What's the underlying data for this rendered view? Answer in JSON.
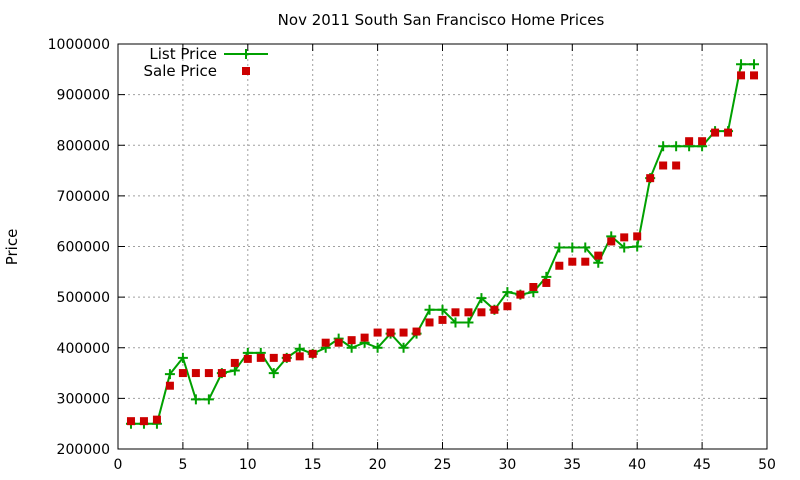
{
  "chart_data": {
    "type": "line",
    "title": "Nov 2011 South San Francisco Home Prices",
    "xlabel": "",
    "ylabel": "Price",
    "xlim": [
      0,
      50
    ],
    "ylim": [
      200000,
      1000000
    ],
    "xticks": [
      0,
      5,
      10,
      15,
      20,
      25,
      30,
      35,
      40,
      45,
      50
    ],
    "yticks": [
      200000,
      300000,
      400000,
      500000,
      600000,
      700000,
      800000,
      900000,
      1000000
    ],
    "grid": true,
    "legend_position": "top-left",
    "series": [
      {
        "name": "List Price",
        "style": "line-plus",
        "color": "#00a000",
        "x": [
          1,
          2,
          3,
          4,
          5,
          6,
          7,
          8,
          9,
          10,
          11,
          12,
          13,
          14,
          15,
          16,
          17,
          18,
          19,
          20,
          21,
          22,
          23,
          24,
          25,
          26,
          27,
          28,
          29,
          30,
          31,
          32,
          33,
          34,
          35,
          36,
          37,
          38,
          39,
          40,
          41,
          42,
          43,
          44,
          45,
          46,
          47,
          48,
          49
        ],
        "y": [
          250000,
          250000,
          250000,
          348000,
          380000,
          298000,
          298000,
          350000,
          355000,
          390000,
          390000,
          350000,
          380000,
          398000,
          388000,
          400000,
          418000,
          400000,
          410000,
          400000,
          428000,
          400000,
          428000,
          475000,
          475000,
          450000,
          450000,
          498000,
          475000,
          510000,
          505000,
          510000,
          540000,
          598000,
          598000,
          598000,
          568000,
          620000,
          598000,
          600000,
          735000,
          798000,
          798000,
          798000,
          798000,
          828000,
          828000,
          960000,
          960000
        ]
      },
      {
        "name": "Sale Price",
        "style": "square-points",
        "color": "#cc0000",
        "x": [
          1,
          2,
          3,
          4,
          5,
          6,
          7,
          8,
          9,
          10,
          11,
          12,
          13,
          14,
          15,
          16,
          17,
          18,
          19,
          20,
          21,
          22,
          23,
          24,
          25,
          26,
          27,
          28,
          29,
          30,
          31,
          32,
          33,
          34,
          35,
          36,
          37,
          38,
          39,
          40,
          41,
          42,
          43,
          44,
          45,
          46,
          47,
          48,
          49
        ],
        "y": [
          255000,
          255000,
          258000,
          325000,
          350000,
          350000,
          350000,
          350000,
          370000,
          378000,
          380000,
          380000,
          380000,
          383000,
          388000,
          410000,
          410000,
          415000,
          420000,
          430000,
          430000,
          430000,
          432000,
          450000,
          455000,
          470000,
          470000,
          470000,
          475000,
          482000,
          505000,
          520000,
          528000,
          562000,
          570000,
          570000,
          582000,
          610000,
          618000,
          620000,
          735000,
          760000,
          760000,
          808000,
          808000,
          825000,
          825000,
          938000,
          938000
        ]
      }
    ]
  }
}
